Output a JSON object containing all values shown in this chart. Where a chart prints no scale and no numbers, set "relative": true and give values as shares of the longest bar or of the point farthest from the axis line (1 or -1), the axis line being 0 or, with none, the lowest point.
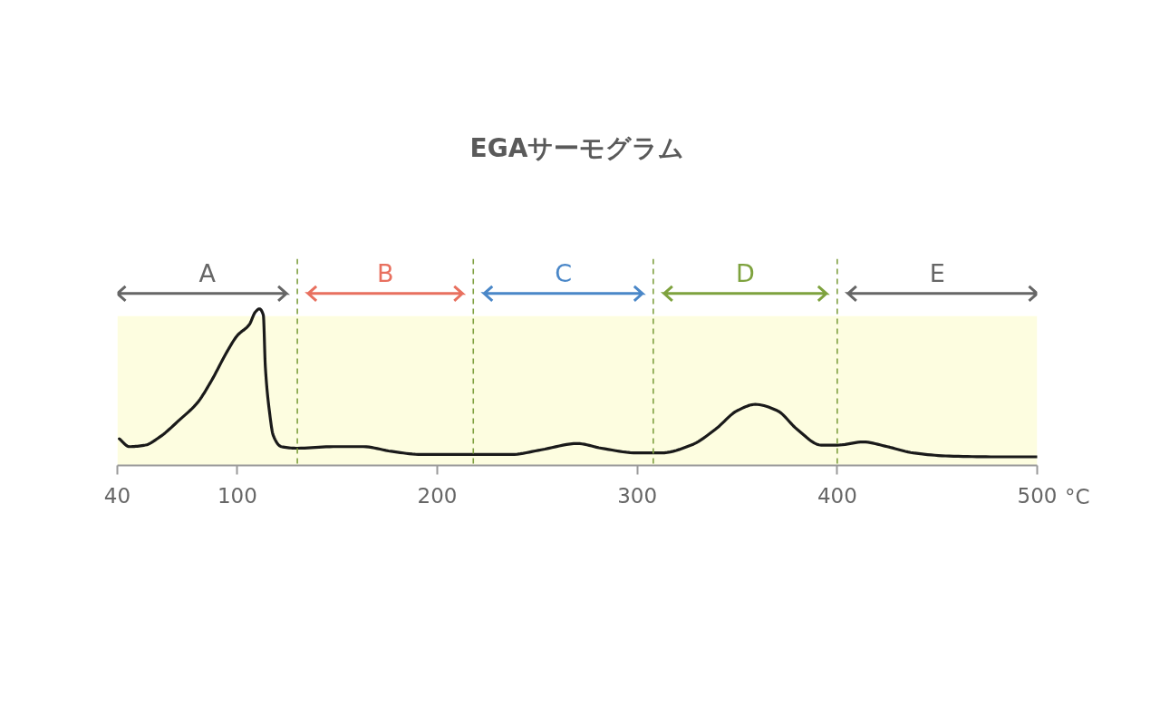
{
  "chart_data": {
    "type": "line",
    "title": "EGAサーモグラム",
    "xlabel": "°C",
    "relative": true,
    "x": [
      41,
      46,
      54,
      61,
      71,
      80,
      87,
      95,
      100,
      106,
      109,
      111,
      113,
      114,
      116,
      118,
      122,
      130,
      148,
      163,
      177,
      192,
      217,
      237,
      252,
      270,
      282,
      300,
      312,
      327,
      339,
      350,
      359,
      370,
      380,
      392,
      400,
      413,
      425,
      438,
      456,
      479,
      500
    ],
    "values": [
      0.17,
      0.12,
      0.13,
      0.18,
      0.29,
      0.4,
      0.54,
      0.73,
      0.83,
      0.9,
      0.98,
      1.0,
      0.96,
      0.63,
      0.35,
      0.19,
      0.12,
      0.11,
      0.12,
      0.12,
      0.09,
      0.07,
      0.07,
      0.07,
      0.1,
      0.14,
      0.11,
      0.08,
      0.08,
      0.13,
      0.23,
      0.35,
      0.39,
      0.35,
      0.23,
      0.13,
      0.13,
      0.15,
      0.12,
      0.08,
      0.06,
      0.055,
      0.055
    ],
    "color": "#1a1a1a",
    "line_style": "solid",
    "grid": false,
    "xlim": [
      40,
      500
    ],
    "xticks": [
      40,
      100,
      200,
      300,
      400,
      500
    ],
    "ref_lines": [
      {
        "axis": "x",
        "value": 130,
        "color": "#7fa040",
        "line_style": "dashed"
      },
      {
        "axis": "x",
        "value": 218,
        "color": "#7fa040",
        "line_style": "dashed"
      },
      {
        "axis": "x",
        "value": 308,
        "color": "#7fa040",
        "line_style": "dashed"
      },
      {
        "axis": "x",
        "value": 400,
        "color": "#7fa040",
        "line_style": "dashed"
      }
    ],
    "bands": [
      {
        "axis": "x",
        "from": 40,
        "to": 130,
        "label": "A",
        "color": "#fdfde0"
      },
      {
        "axis": "x",
        "from": 130,
        "to": 218,
        "label": "B",
        "color": "#fdfde0"
      },
      {
        "axis": "x",
        "from": 218,
        "to": 308,
        "label": "C",
        "color": "#fdfde0"
      },
      {
        "axis": "x",
        "from": 308,
        "to": 400,
        "label": "D",
        "color": "#fdfde0"
      },
      {
        "axis": "x",
        "from": 400,
        "to": 500,
        "label": "E",
        "color": "#fdfde0"
      }
    ]
  }
}
